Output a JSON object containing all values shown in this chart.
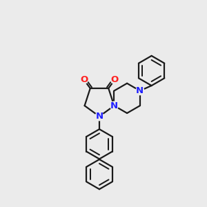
{
  "background_color": "#ebebeb",
  "bond_color": "#1a1a1a",
  "N_color": "#2020ff",
  "O_color": "#ff2020",
  "line_width": 1.6,
  "figsize": [
    3.0,
    3.0
  ],
  "dpi": 100,
  "xlim": [
    0,
    10
  ],
  "ylim": [
    0,
    10
  ]
}
